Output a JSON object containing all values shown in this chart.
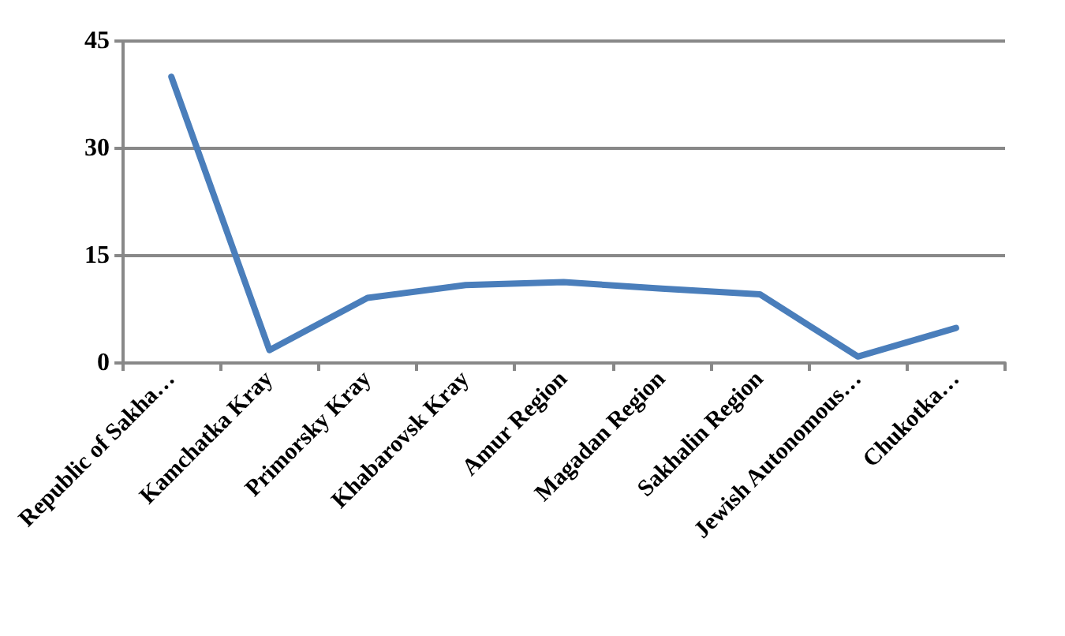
{
  "chart_data": {
    "type": "line",
    "categories": [
      "Republic of Sakha…",
      "Kamchatka Kray",
      "Primorsky Kray",
      "Khabarovsk Kray",
      "Amur Region",
      "Magadan Region",
      "Sakhalin Region",
      "Jewish Autonomous…",
      "Chukotka…"
    ],
    "series": [
      {
        "color": "#4a7ebb",
        "values": [
          40.0,
          1.8,
          9.1,
          10.9,
          11.3,
          10.4,
          9.6,
          0.9,
          4.9
        ]
      }
    ],
    "ylim": [
      0,
      45
    ],
    "yticks": [
      0,
      15,
      30,
      45
    ],
    "grid": "y",
    "marker": "none",
    "line_style": "solid"
  }
}
